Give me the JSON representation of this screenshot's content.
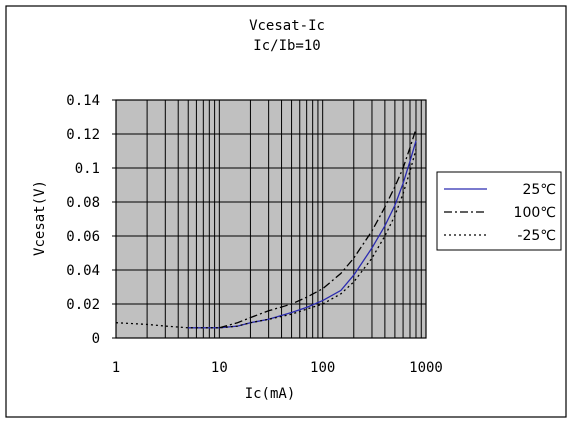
{
  "chart_data": {
    "type": "line",
    "title": "Vcesat-Ic",
    "subtitle": "Ic/Ib=10",
    "xlabel": "Ic(mA)",
    "ylabel": "Vcesat(V)",
    "x_scale": "log",
    "xlim": [
      1,
      1000
    ],
    "ylim": [
      0,
      0.14
    ],
    "x_ticks": [
      "1",
      "10",
      "100",
      "1000"
    ],
    "y_ticks": [
      "0",
      "0.02",
      "0.04",
      "0.06",
      "0.08",
      "0.1",
      "0.12",
      "0.14"
    ],
    "grid": true,
    "plot_background": "#c0c0c0",
    "legend_position": "right",
    "series": [
      {
        "name": "25℃",
        "color": "#2a2ab0",
        "dash": "solid",
        "x": [
          5,
          10,
          15,
          20,
          30,
          50,
          70,
          100,
          150,
          200,
          300,
          400,
          500,
          600,
          700,
          800
        ],
        "y": [
          0.006,
          0.006,
          0.007,
          0.009,
          0.011,
          0.015,
          0.018,
          0.022,
          0.028,
          0.037,
          0.053,
          0.066,
          0.078,
          0.091,
          0.104,
          0.116
        ]
      },
      {
        "name": "100℃",
        "color": "#000000",
        "dash": "dashdot",
        "x": [
          10,
          15,
          20,
          30,
          50,
          70,
          100,
          150,
          200,
          300,
          400,
          500,
          600,
          700,
          800
        ],
        "y": [
          0.006,
          0.009,
          0.012,
          0.016,
          0.02,
          0.024,
          0.029,
          0.038,
          0.047,
          0.063,
          0.077,
          0.089,
          0.1,
          0.112,
          0.123
        ]
      },
      {
        "name": "-25℃",
        "color": "#000000",
        "dash": "dotted",
        "x": [
          1,
          2,
          3,
          5,
          7,
          10,
          15,
          20,
          30,
          50,
          70,
          100,
          150,
          200,
          300,
          400,
          500,
          600,
          700,
          800
        ],
        "y": [
          0.009,
          0.008,
          0.007,
          0.006,
          0.006,
          0.006,
          0.007,
          0.009,
          0.011,
          0.014,
          0.017,
          0.02,
          0.026,
          0.033,
          0.047,
          0.06,
          0.072,
          0.085,
          0.098,
          0.111
        ]
      }
    ]
  }
}
